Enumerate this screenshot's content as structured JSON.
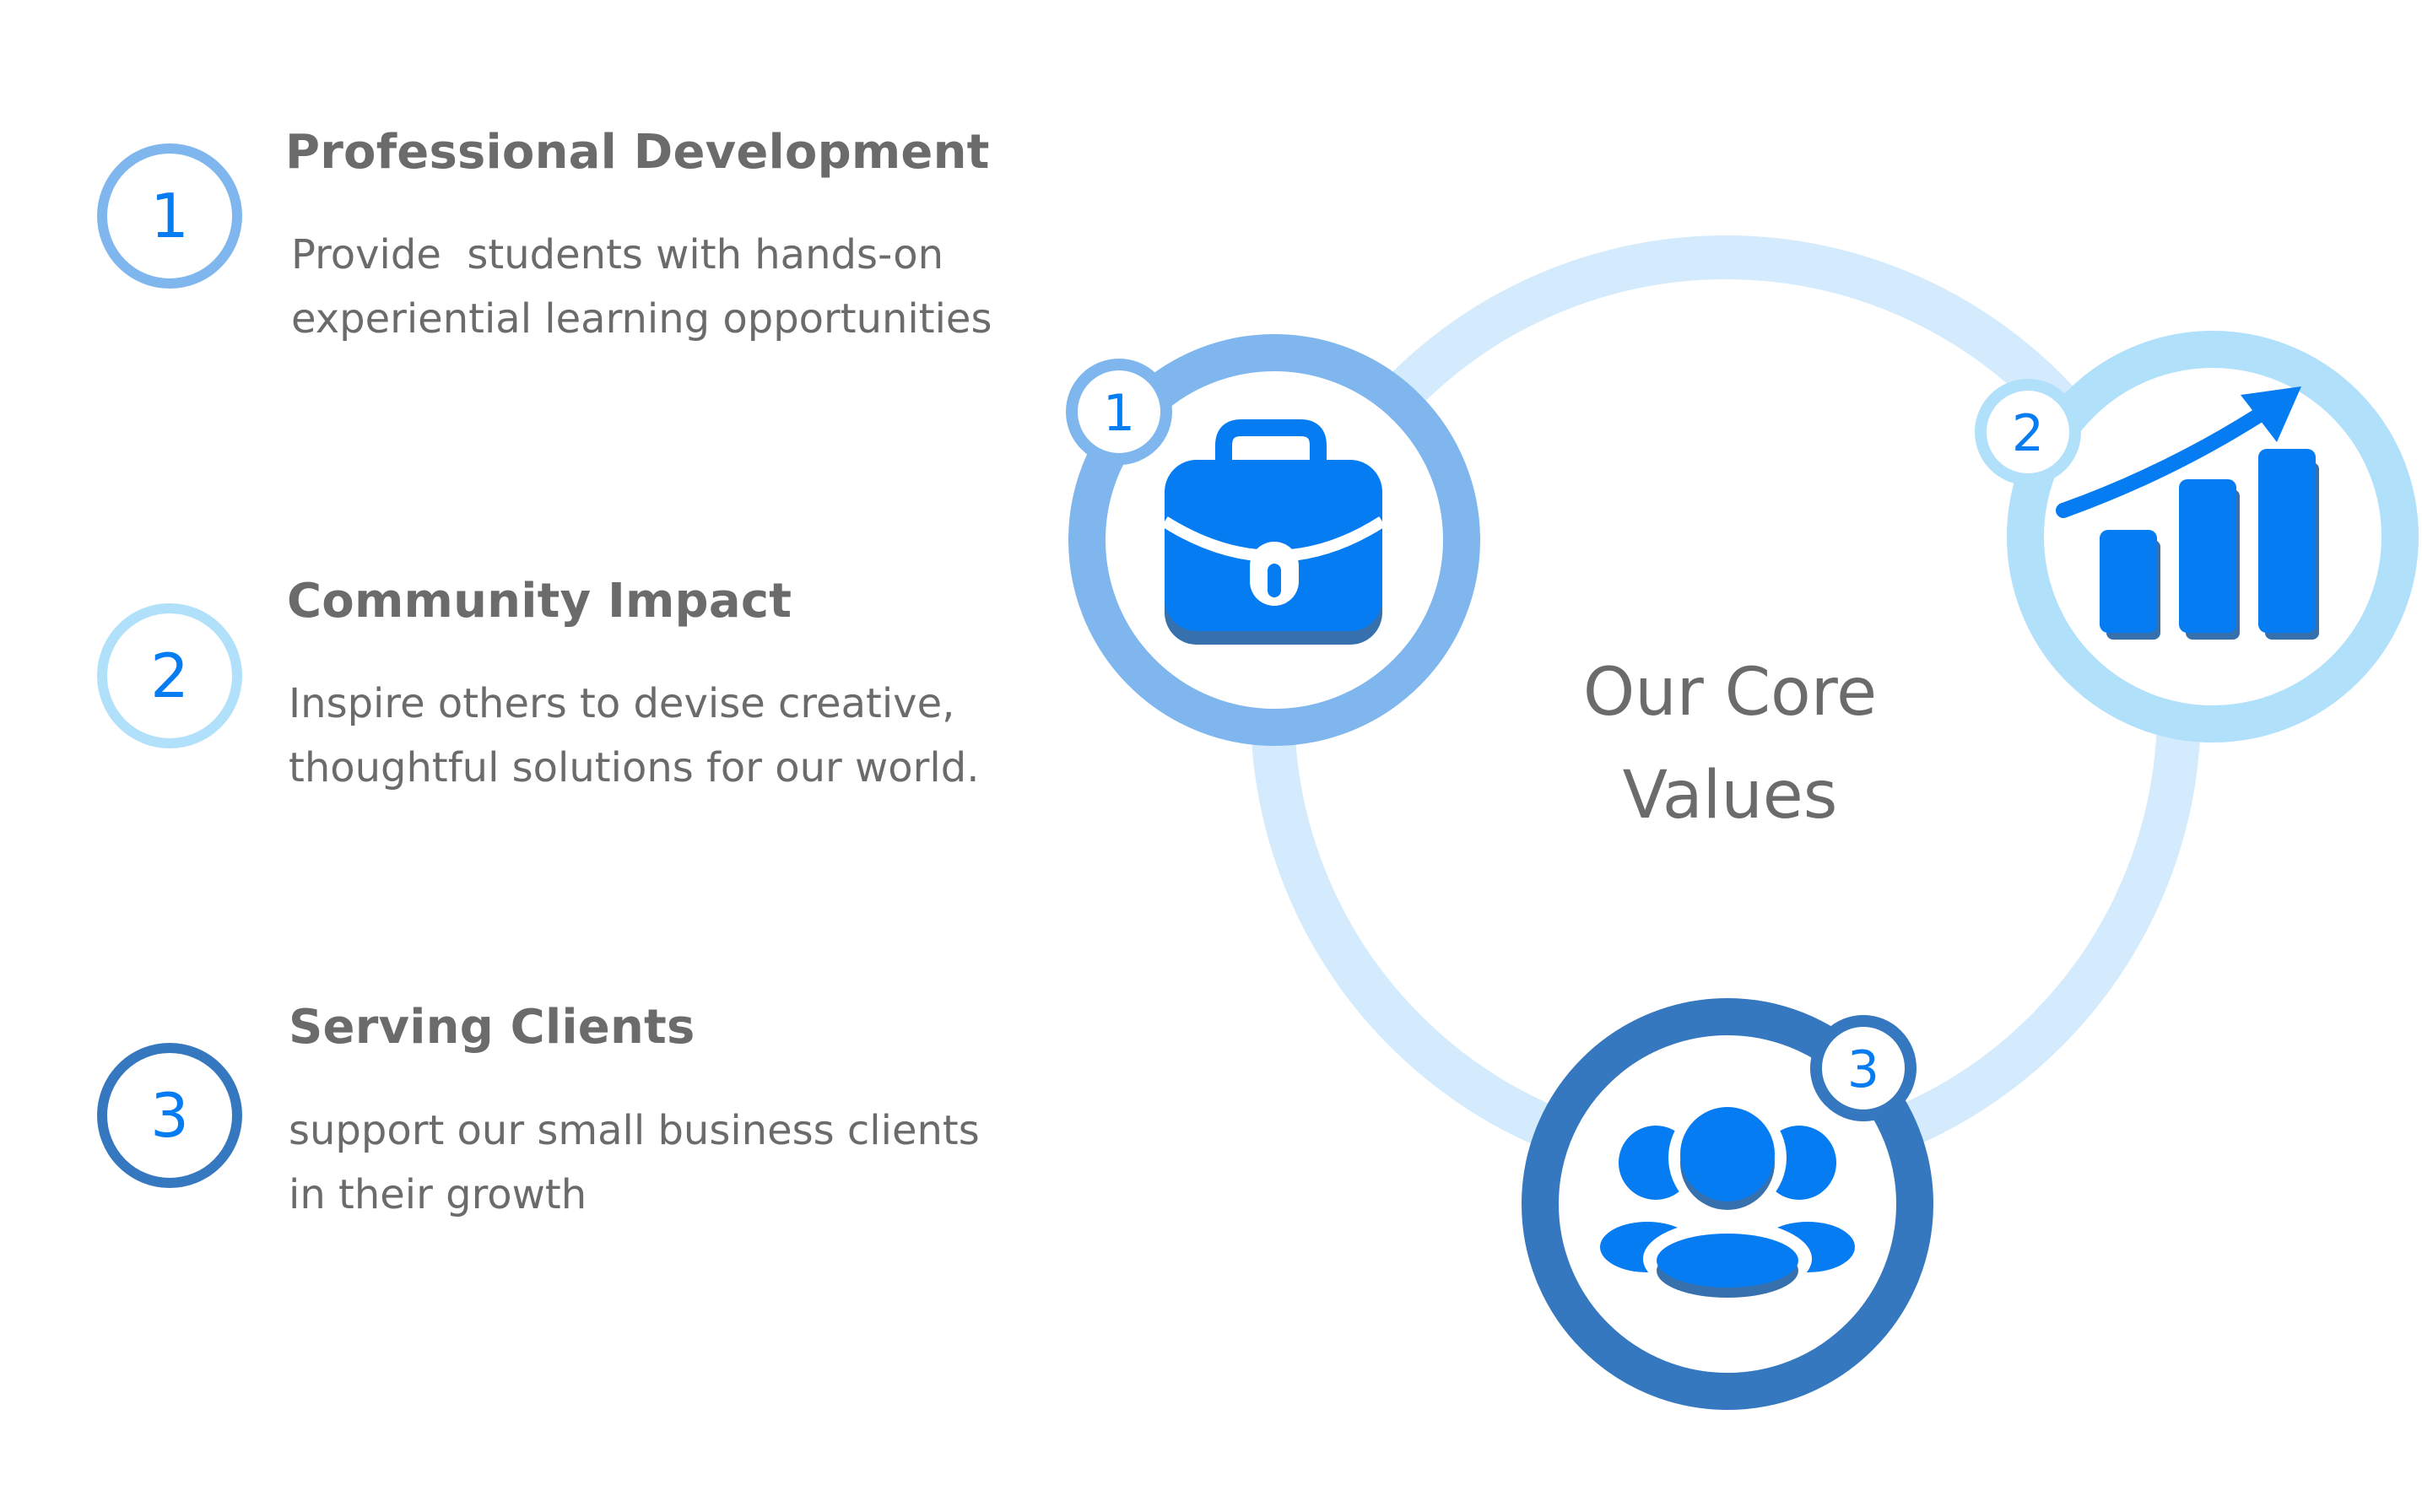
{
  "items": [
    {
      "number": "1",
      "title": "Professional Development",
      "desc_line1": "Provide  students with hands-on",
      "desc_line2": "experiential learning opportunities"
    },
    {
      "number": "2",
      "title": "Community Impact",
      "desc_line1": "Inspire others to devise creative,",
      "desc_line2": "thoughtful solutions for our world."
    },
    {
      "number": "3",
      "title": "Serving Clients",
      "desc_line1": "support our small business clients",
      "desc_line2": "in their growth"
    }
  ],
  "center": {
    "line1": "Our Core",
    "line2": "Values"
  },
  "nodes": [
    {
      "badge": "1",
      "icon": "briefcase-icon"
    },
    {
      "badge": "2",
      "icon": "growth-chart-icon"
    },
    {
      "badge": "3",
      "icon": "team-icon"
    }
  ],
  "colors": {
    "item1_ring": "#7fb6ee",
    "item2_ring": "#b1e0fb",
    "item3_ring": "#3578bf",
    "big_ring": "#d3ebfc",
    "icon_blue": "#067cf2",
    "icon_shadow": "#3670ad",
    "text_gray": "#6b6b6b"
  }
}
